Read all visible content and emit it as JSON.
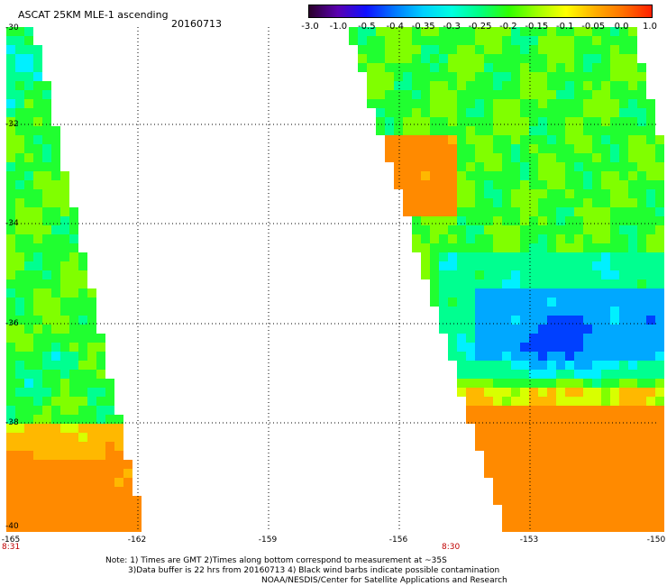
{
  "header": {
    "title": "ASCAT 25KM MLE-1 ascending",
    "date": "20160713"
  },
  "colorbar": {
    "labels": [
      "-3.0",
      "-1.0",
      "-0.5",
      "-0.4",
      "-0.35",
      "-0.3",
      "-0.25",
      "-0.2",
      "-0.15",
      "-0.1",
      "-0.05",
      "0.0",
      "1.0"
    ],
    "colors": [
      "#2a002a",
      "#5a00b0",
      "#1010ff",
      "#0078ff",
      "#00d0ff",
      "#00ffe0",
      "#00ff80",
      "#30ff00",
      "#a0ff00",
      "#ffff00",
      "#ffb000",
      "#ff7000",
      "#ff2000"
    ]
  },
  "axes": {
    "lat_labels": [
      "-30",
      "-32",
      "-34",
      "-36",
      "-38",
      "-40"
    ],
    "lon_labels": [
      "-165",
      "-162",
      "-159",
      "-156",
      "-153",
      "-150"
    ]
  },
  "swaths": {
    "left_time": "8:31",
    "right_time": "8:30"
  },
  "notes": [
    "Note: 1) Times are GMT 2)Times along bottom correspond to measurement at ~35S",
    "3)Data buffer is 22 hrs from 20160713 4) Black wind barbs indicate possible contamination",
    "NOAA/NESDIS/Center for Satellite Applications and Research"
  ]
}
